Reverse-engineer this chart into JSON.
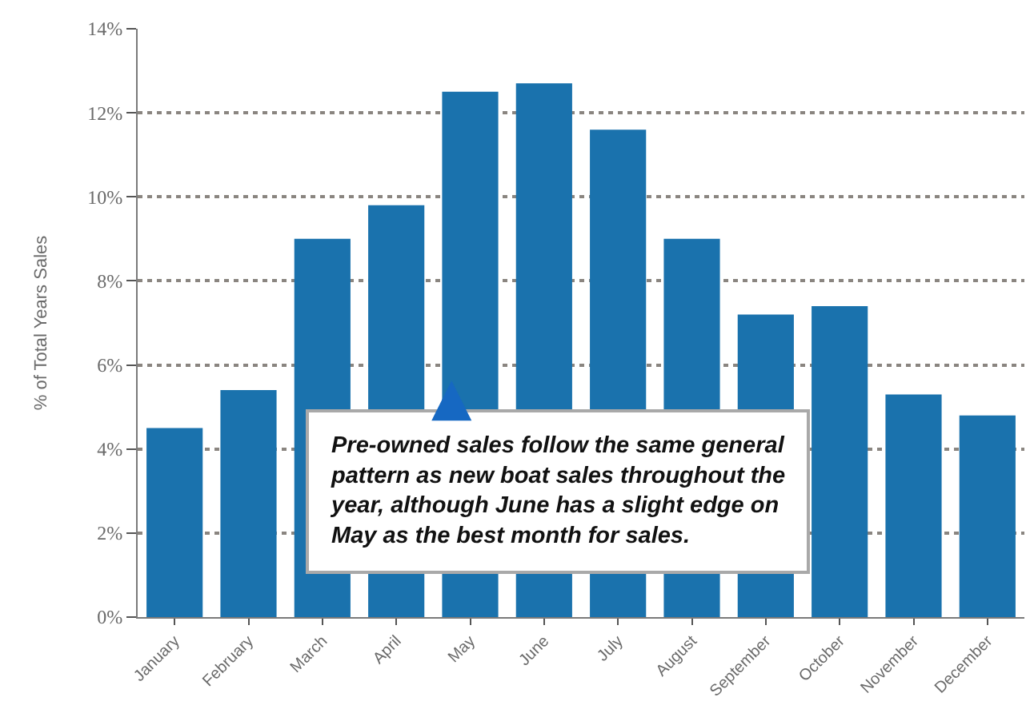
{
  "chart_data": {
    "type": "bar",
    "categories": [
      "January",
      "February",
      "March",
      "April",
      "May",
      "June",
      "July",
      "August",
      "September",
      "October",
      "November",
      "December"
    ],
    "values": [
      4.5,
      5.4,
      9.0,
      9.8,
      12.5,
      12.7,
      11.6,
      9.0,
      7.2,
      7.4,
      5.3,
      4.8
    ],
    "color": "#1a72ad",
    "ylabel": "% of Total Years Sales",
    "ylim": [
      0,
      14
    ],
    "yticks": [
      {
        "value": 0,
        "label": "0%"
      },
      {
        "value": 2,
        "label": "2%"
      },
      {
        "value": 4,
        "label": "4%"
      },
      {
        "value": 6,
        "label": "6%"
      },
      {
        "value": 8,
        "label": "8%"
      },
      {
        "value": 10,
        "label": "10%"
      },
      {
        "value": 12,
        "label": "12%"
      },
      {
        "value": 14,
        "label": "14%"
      }
    ],
    "grid": "y",
    "annotations": [
      "Pre-owned sales follow the same general pattern as new boat sales throughout the year, although June has a slight edge on May as the best month for sales."
    ]
  }
}
